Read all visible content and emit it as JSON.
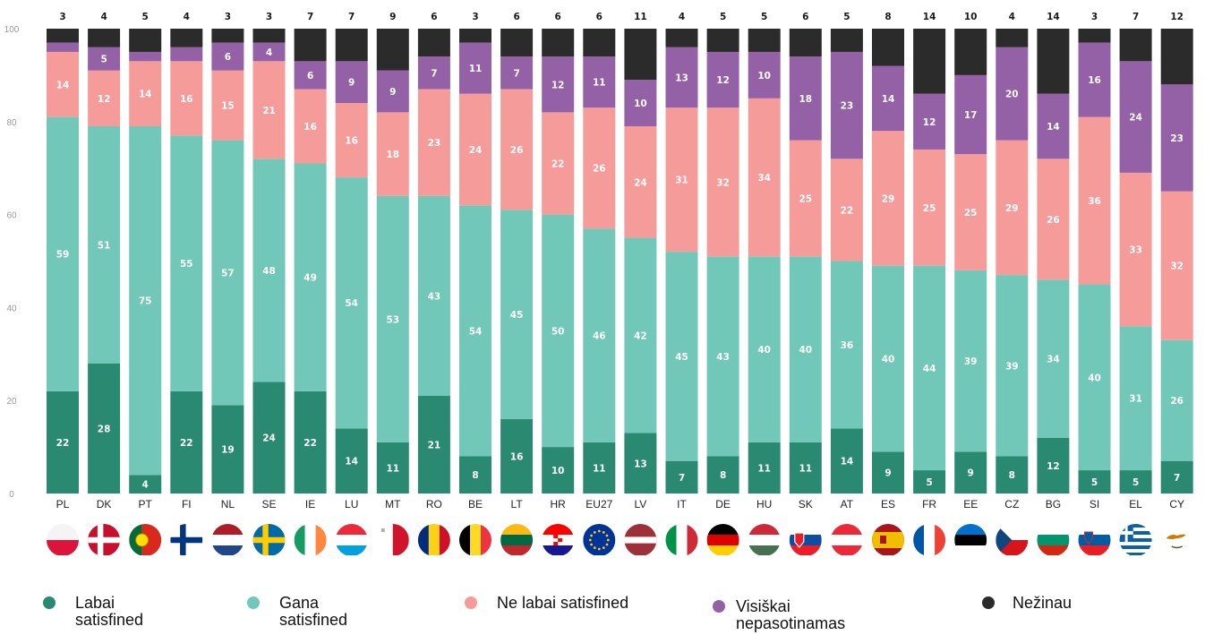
{
  "chart_data": {
    "type": "bar",
    "stacked": true,
    "yaxis": {
      "ylim": [
        0,
        100
      ],
      "ticks": [
        0,
        20,
        40,
        60,
        80,
        100
      ]
    },
    "categories": [
      "PL",
      "DK",
      "PT",
      "FI",
      "NL",
      "SE",
      "IE",
      "LU",
      "MT",
      "RO",
      "BE",
      "LT",
      "HR",
      "EU27",
      "LV",
      "IT",
      "DE",
      "HU",
      "SK",
      "AT",
      "ES",
      "FR",
      "EE",
      "CZ",
      "BG",
      "SI",
      "EL",
      "CY"
    ],
    "series": [
      {
        "name": "Labai satisfined",
        "color": "#2a8a71",
        "values": [
          22,
          28,
          4,
          22,
          19,
          24,
          22,
          14,
          11,
          21,
          8,
          16,
          10,
          11,
          13,
          7,
          8,
          11,
          11,
          14,
          9,
          5,
          9,
          8,
          12,
          5,
          5,
          7
        ]
      },
      {
        "name": "Gana satisfined",
        "color": "#72c8b8",
        "values": [
          59,
          51,
          75,
          55,
          57,
          48,
          49,
          54,
          53,
          43,
          54,
          45,
          50,
          46,
          42,
          45,
          43,
          40,
          40,
          36,
          40,
          44,
          39,
          39,
          34,
          40,
          31,
          26
        ]
      },
      {
        "name": "Ne labai satisfined",
        "color": "#f59c9a",
        "values": [
          14,
          12,
          14,
          16,
          15,
          21,
          16,
          16,
          18,
          23,
          24,
          26,
          22,
          26,
          24,
          31,
          32,
          34,
          25,
          22,
          29,
          25,
          25,
          29,
          26,
          36,
          33,
          32
        ]
      },
      {
        "name": "Visiškai nepasotinamas",
        "color": "#9461a6",
        "values": [
          2,
          5,
          2,
          3,
          6,
          4,
          6,
          9,
          9,
          7,
          11,
          7,
          12,
          11,
          10,
          13,
          12,
          10,
          18,
          23,
          14,
          12,
          17,
          20,
          14,
          16,
          24,
          23
        ]
      },
      {
        "name": "Nežinau",
        "color": "#2b2b2b",
        "values": [
          3,
          4,
          5,
          4,
          3,
          3,
          7,
          7,
          9,
          6,
          3,
          6,
          6,
          6,
          11,
          4,
          5,
          5,
          6,
          5,
          8,
          14,
          10,
          4,
          14,
          3,
          7,
          12
        ]
      }
    ],
    "flags": [
      "poland-flag",
      "denmark-flag",
      "portugal-flag",
      "finland-flag",
      "netherlands-flag",
      "sweden-flag",
      "ireland-flag",
      "luxembourg-flag",
      "malta-flag",
      "romania-flag",
      "belgium-flag",
      "lithuania-flag",
      "croatia-flag",
      "eu-flag",
      "latvia-flag",
      "italy-flag",
      "germany-flag",
      "hungary-flag",
      "slovakia-flag",
      "austria-flag",
      "spain-flag",
      "france-flag",
      "estonia-flag",
      "czechia-flag",
      "bulgaria-flag",
      "slovenia-flag",
      "greece-flag",
      "cyprus-flag"
    ],
    "legend": [
      {
        "label": "Labai satisfined",
        "color": "#2a8a71"
      },
      {
        "label": "Gana satisfined",
        "color": "#72c8b8"
      },
      {
        "label": "Ne labai satisfined",
        "color": "#f59c9a"
      },
      {
        "label": "Visiškai nepasotinamas",
        "color": "#9461a6"
      },
      {
        "label": "Nežinau",
        "color": "#2b2b2b"
      }
    ]
  }
}
